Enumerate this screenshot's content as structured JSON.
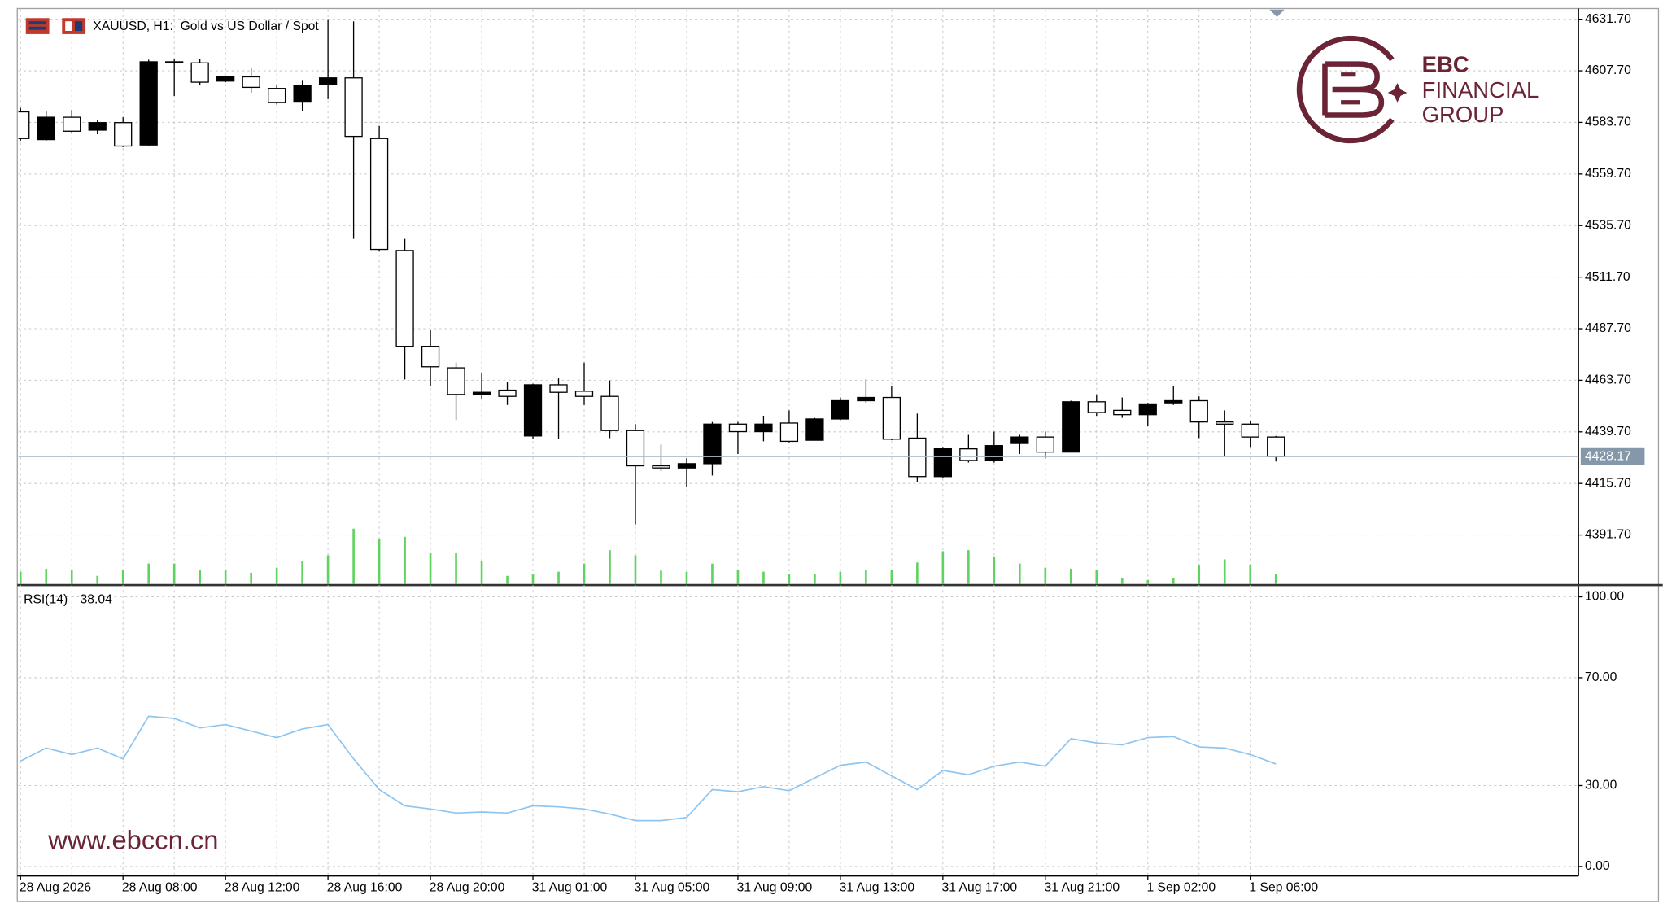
{
  "chart_data": [
    {
      "type": "candlestick",
      "title": "XAUUSD, H1:  Gold vs US Dollar / Spot",
      "categories": [
        "28 Aug 2026",
        null,
        null,
        null,
        "28 Aug 08:00",
        null,
        null,
        null,
        "28 Aug 12:00",
        null,
        null,
        null,
        "28 Aug 16:00",
        null,
        null,
        null,
        "28 Aug 20:00",
        null,
        null,
        null,
        "31 Aug 01:00",
        null,
        null,
        null,
        "31 Aug 05:00",
        null,
        null,
        null,
        "31 Aug 09:00",
        null,
        null,
        null,
        "31 Aug 13:00",
        null,
        null,
        null,
        "31 Aug 17:00",
        null,
        null,
        null,
        "31 Aug 21:00",
        null,
        null,
        null,
        "1 Sep 02:00",
        null,
        null,
        null,
        "1 Sep 06:00",
        null
      ],
      "open": [
        4588.6,
        4575.7,
        4586.1,
        4580.1,
        4583.6,
        4573.2,
        4611.9,
        4611.4,
        4602.9,
        4604.9,
        4599.5,
        4593.5,
        4601.5,
        4604.4,
        4576.2,
        4524.1,
        4479.5,
        4469.5,
        4457.1,
        4459.1,
        4437.8,
        4461.6,
        4458.6,
        4456.2,
        4440.3,
        4423.9,
        4422.9,
        4424.9,
        4443.3,
        4439.8,
        4443.8,
        4435.8,
        4445.7,
        4454.2,
        4455.7,
        4436.8,
        4418.9,
        4431.8,
        4426.4,
        4434.3,
        4437.3,
        4430.3,
        4453.7,
        4449.7,
        4447.7,
        4453.2,
        4454.2,
        4444.3,
        4443.3,
        4437.3
      ],
      "high": [
        4590.5,
        4589.1,
        4589.5,
        4584.6,
        4586.1,
        4612.9,
        4613.4,
        4613.4,
        4605.4,
        4608.9,
        4601.0,
        4603.4,
        4631.7,
        4630.7,
        4582.1,
        4529.5,
        4486.9,
        4471.9,
        4467.0,
        4463.1,
        4462.1,
        4464.6,
        4471.9,
        4463.6,
        4443.3,
        4433.8,
        4427.4,
        4444.3,
        4444.3,
        4447.2,
        4449.7,
        4446.2,
        4455.7,
        4464.1,
        4461.1,
        4448.2,
        4432.3,
        4438.3,
        4439.8,
        4438.3,
        4439.8,
        4454.2,
        4457.1,
        4455.7,
        4453.2,
        4461.1,
        4456.2,
        4449.7,
        4444.8,
        4437.8
      ],
      "low": [
        4575.2,
        4575.2,
        4578.6,
        4578.2,
        4572.2,
        4572.7,
        4596.0,
        4601.0,
        4602.4,
        4597.5,
        4592.0,
        4589.1,
        4594.5,
        4529.5,
        4523.6,
        4464.1,
        4461.1,
        4445.2,
        4455.2,
        4452.2,
        4436.3,
        4436.3,
        4452.2,
        4436.8,
        4396.6,
        4421.4,
        4414.0,
        4419.4,
        4429.4,
        4435.3,
        4434.8,
        4435.8,
        4445.2,
        4453.2,
        4435.8,
        4416.5,
        4418.4,
        4425.4,
        4425.4,
        4429.4,
        4427.4,
        4430.3,
        4447.2,
        4446.2,
        4442.3,
        4452.2,
        4436.8,
        4428.2,
        4432.3,
        4425.9
      ],
      "close": [
        4576.2,
        4586.1,
        4579.6,
        4583.6,
        4572.7,
        4611.9,
        4611.4,
        4602.4,
        4604.9,
        4600.0,
        4593.0,
        4601.0,
        4604.4,
        4577.2,
        4524.6,
        4479.5,
        4470.0,
        4457.1,
        4458.1,
        4456.2,
        4461.6,
        4458.1,
        4456.2,
        4440.3,
        4423.9,
        4422.9,
        4424.9,
        4443.3,
        4439.8,
        4443.3,
        4435.3,
        4445.7,
        4454.2,
        4455.7,
        4436.3,
        4418.9,
        4431.8,
        4426.4,
        4433.3,
        4437.3,
        4430.3,
        4453.7,
        4448.7,
        4447.7,
        4452.7,
        4454.2,
        4444.3,
        4443.3,
        4437.3,
        4428.17
      ],
      "volume": [
        1200,
        1500,
        1400,
        800,
        1400,
        2000,
        2000,
        1400,
        1400,
        1100,
        1600,
        2200,
        2800,
        5400,
        4400,
        4600,
        3000,
        3000,
        2200,
        800,
        1000,
        1200,
        2000,
        3300,
        2800,
        1300,
        1200,
        2000,
        1400,
        1200,
        1000,
        1000,
        1200,
        1400,
        1400,
        2100,
        3200,
        3300,
        2700,
        2000,
        1600,
        1500,
        1400,
        600,
        400,
        600,
        1800,
        2400,
        1800,
        1000
      ],
      "up_color": "#000000",
      "down_color": "#ffffff",
      "volume_color": "#5fd35f",
      "last_price": 4428.17,
      "ylim": [
        4368.9,
        4635.7
      ],
      "yticks": [
        {
          "value": 4631.7,
          "label": "4631.70"
        },
        {
          "value": 4607.7,
          "label": "4607.70"
        },
        {
          "value": 4583.7,
          "label": "4583.70"
        },
        {
          "value": 4559.7,
          "label": "4559.70"
        },
        {
          "value": 4535.7,
          "label": "4535.70"
        },
        {
          "value": 4511.7,
          "label": "4511.70"
        },
        {
          "value": 4487.7,
          "label": "4487.70"
        },
        {
          "value": 4463.7,
          "label": "4463.70"
        },
        {
          "value": 4439.7,
          "label": "4439.70"
        },
        {
          "value": 4415.7,
          "label": "4415.70"
        },
        {
          "value": 4391.7,
          "label": "4391.70"
        }
      ],
      "grid": true
    },
    {
      "type": "line",
      "series": [
        {
          "name": "RSI(14)",
          "color": "#8ec5f0",
          "values": [
            39.1,
            43.9,
            41.5,
            43.9,
            39.9,
            55.7,
            54.9,
            51.4,
            52.6,
            50.2,
            47.8,
            51.0,
            52.6,
            39.9,
            28.5,
            22.5,
            21.3,
            19.8,
            20.2,
            19.8,
            22.5,
            22.1,
            21.3,
            19.4,
            17.0,
            17.0,
            18.2,
            28.5,
            27.7,
            29.6,
            28.1,
            32.8,
            37.5,
            38.7,
            33.6,
            28.5,
            35.6,
            34.0,
            37.2,
            38.7,
            37.2,
            47.4,
            45.8,
            45.1,
            47.8,
            48.2,
            44.3,
            43.9,
            41.5,
            38.04
          ]
        }
      ],
      "ylim": [
        0,
        100
      ],
      "yticks": [
        {
          "value": 0,
          "label": "0.00"
        },
        {
          "value": 30,
          "label": "30.00"
        },
        {
          "value": 70,
          "label": "70.00"
        },
        {
          "value": 100,
          "label": "100.00"
        }
      ],
      "grid": true
    }
  ],
  "logo": {
    "name": "EBC",
    "lines": [
      "FINANCIAL",
      "GROUP"
    ]
  },
  "watermark": "www.ebccn.cn"
}
